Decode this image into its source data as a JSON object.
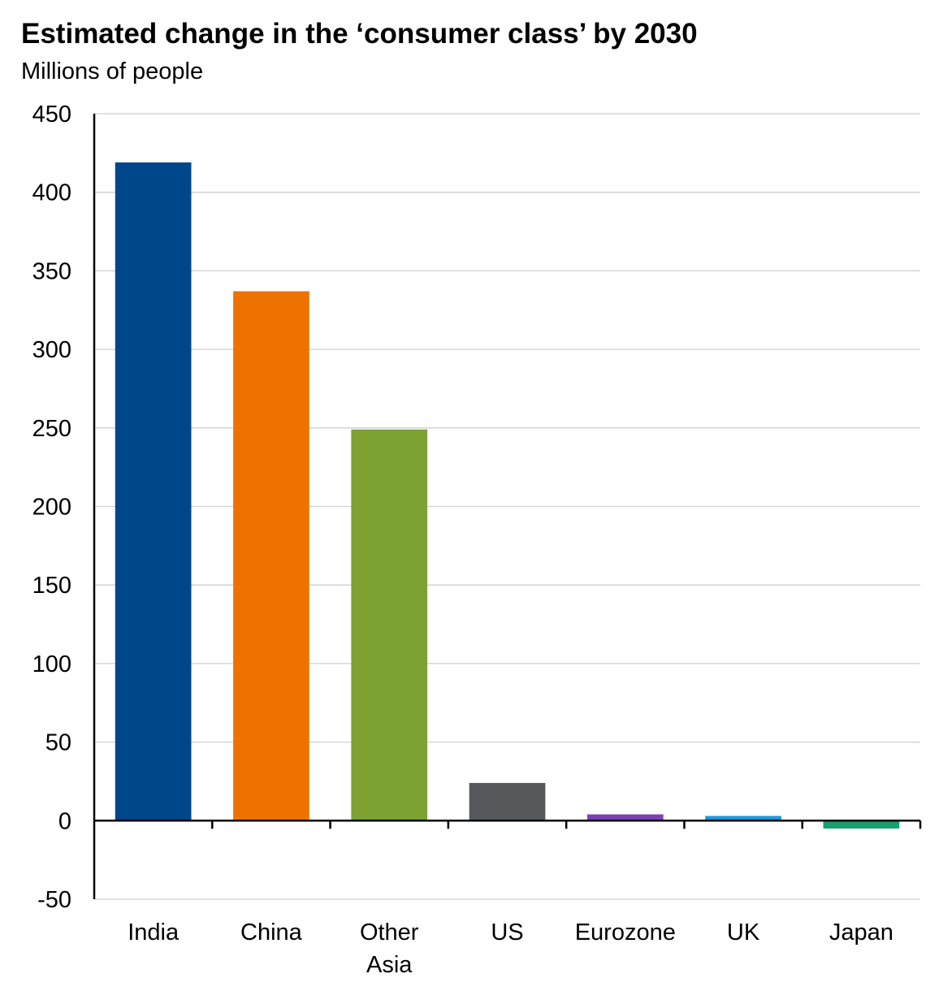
{
  "chart_data": {
    "type": "bar",
    "title": "Estimated change in the ‘consumer class’ by 2030",
    "subtitle": "Millions of people",
    "xlabel": "",
    "ylabel": "",
    "categories": [
      "India",
      "China",
      "Other Asia",
      "US",
      "Eurozone",
      "UK",
      "Japan"
    ],
    "category_lines": [
      [
        "India"
      ],
      [
        "China"
      ],
      [
        "Other",
        "Asia"
      ],
      [
        "US"
      ],
      [
        "Eurozone"
      ],
      [
        "UK"
      ],
      [
        "Japan"
      ]
    ],
    "values": [
      419,
      337,
      249,
      24,
      4,
      3,
      -5
    ],
    "colors": [
      "#00468b",
      "#ed7200",
      "#7da232",
      "#55595c",
      "#7e3fb4",
      "#1f97d9",
      "#17a06e"
    ],
    "ylim": [
      -50,
      450
    ],
    "yticks": [
      "-50",
      "0",
      "50",
      "100",
      "150",
      "200",
      "250",
      "300",
      "350",
      "400",
      "450"
    ],
    "grid": true,
    "legend": "none"
  }
}
